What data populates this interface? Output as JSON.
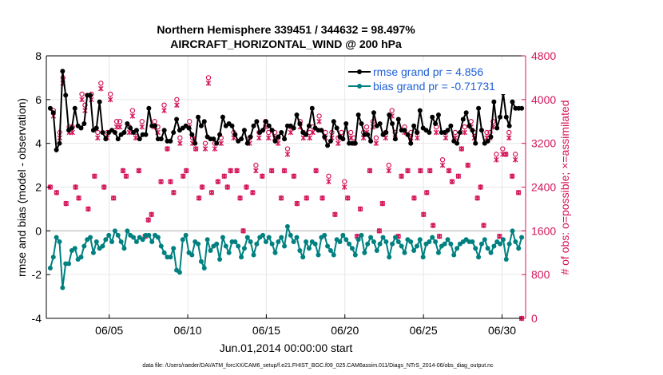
{
  "chart_data": {
    "type": "line",
    "title_line1": "Northern Hemisphere 339451 / 344632 = 98.497%",
    "title_line2": "AIRCRAFT_HORIZONTAL_WIND @ 200 hPa",
    "xlabel": "Jun.01,2014 00:00:00 start",
    "ylabel_left": "rmse and bias (model - observation)",
    "ylabel_right": "# of obs: o=possible; ×=assimilated",
    "footnote": "data file: /Users/raeder/DAI/ATM_forcXX/CAM6_setup/f.e21.FHIST_BGC.f09_025.CAM6assim.011/Diags_NTrS_2014-06/obs_diag_output.nc",
    "xlim": [
      1,
      31.5
    ],
    "ylim_left": [
      -4,
      8
    ],
    "ylim_right": [
      0,
      4800
    ],
    "x_ticks": [
      {
        "value": 5,
        "label": "06/05"
      },
      {
        "value": 10,
        "label": "06/10"
      },
      {
        "value": 15,
        "label": "06/15"
      },
      {
        "value": 20,
        "label": "06/20"
      },
      {
        "value": 25,
        "label": "06/25"
      },
      {
        "value": 30,
        "label": "06/30"
      }
    ],
    "y_ticks_left": [
      -4,
      -2,
      0,
      2,
      4,
      6,
      8
    ],
    "y_ticks_right": [
      0,
      800,
      1600,
      2400,
      3200,
      4000,
      4800
    ],
    "legend": [
      {
        "label": "rmse grand pr = 4.856",
        "color": "#000000"
      },
      {
        "label": "bias grand pr = -0.71731",
        "color": "#008080"
      }
    ],
    "colors": {
      "rmse": "#000000",
      "bias": "#008080",
      "obs": "#d4145a",
      "zero_line": "#c8c8c8"
    },
    "series": [
      {
        "name": "rmse",
        "axis": "left",
        "values": [
          5.6,
          5.4,
          3.7,
          4.0,
          7.3,
          6.2,
          4.6,
          4.7,
          5.6,
          4.8,
          4.7,
          4.9,
          6.2,
          6.2,
          4.6,
          4.7,
          5.9,
          4.5,
          4.2,
          4.5,
          4.6,
          4.5,
          4.2,
          4.4,
          4.5,
          4.9,
          4.7,
          4.5,
          4.6,
          4.2,
          4.4,
          4.4,
          5.6,
          4.8,
          4.8,
          4.2,
          4.2,
          4.6,
          4.1,
          4.1,
          4.5,
          5.1,
          4.6,
          4.7,
          4.8,
          4.7,
          4.4,
          4.0,
          5.2,
          4.8,
          5.0,
          4.3,
          4.2,
          4.2,
          4.0,
          4.4,
          5.2,
          4.8,
          4.9,
          4.8,
          4.4,
          4.1,
          4.2,
          4.6,
          4.0,
          4.3,
          4.8,
          5.0,
          4.5,
          4.6,
          5.0,
          4.8,
          4.6,
          4.1,
          4.3,
          4.5,
          4.2,
          4.8,
          4.8,
          4.7,
          5.3,
          4.9,
          4.5,
          4.4,
          4.8,
          5.6,
          4.7,
          4.6,
          4.6,
          4.3,
          3.9,
          4.1,
          5.0,
          4.7,
          4.3,
          4.2,
          4.9,
          4.0,
          4.0,
          4.0,
          5.3,
          4.9,
          4.4,
          4.4,
          4.1,
          5.4,
          4.8,
          4.9,
          4.4,
          4.5,
          5.3,
          4.9,
          4.2,
          5.1,
          4.6,
          4.6,
          4.4,
          4.0,
          4.8,
          4.5,
          5.5,
          4.7,
          4.6,
          4.5,
          5.2,
          4.9,
          5.3,
          4.5,
          4.5,
          4.6,
          4.8,
          4.1,
          4.0,
          4.5,
          5.1,
          5.4,
          4.8,
          4.6,
          4.0,
          5.6,
          4.6,
          4.0,
          4.1,
          4.3,
          5.9,
          4.7,
          5.2,
          6.3,
          5.2,
          4.8,
          5.9,
          5.6,
          5.6,
          5.6
        ]
      },
      {
        "name": "bias",
        "axis": "left",
        "values": [
          -1.7,
          -1.2,
          -0.3,
          -0.5,
          -2.6,
          -1.5,
          -1.5,
          -0.9,
          -0.8,
          -1.3,
          -1.2,
          -0.7,
          -0.4,
          -0.3,
          -1.0,
          -0.5,
          -0.8,
          -0.7,
          -0.4,
          -0.2,
          -0.5,
          0.0,
          -0.2,
          -0.5,
          -0.8,
          0.0,
          -0.2,
          -0.3,
          -0.5,
          -0.3,
          -0.4,
          -0.2,
          -0.2,
          -0.5,
          -0.2,
          -0.3,
          -0.7,
          -1.0,
          -1.2,
          -1.2,
          -0.8,
          -1.8,
          -1.9,
          -0.4,
          -0.2,
          -1.0,
          -1.1,
          -0.5,
          -0.6,
          -1.4,
          -1.7,
          -0.4,
          -0.9,
          -0.7,
          -0.6,
          -1.3,
          -0.3,
          -0.7,
          -1.0,
          -0.5,
          -0.5,
          -0.7,
          -1.2,
          -0.8,
          -0.3,
          -0.5,
          -1.1,
          -0.6,
          -0.3,
          -0.2,
          -0.5,
          -0.3,
          -0.6,
          -1.0,
          -0.5,
          -0.3,
          -0.7,
          0.2,
          -0.2,
          -0.5,
          -0.3,
          -0.9,
          -1.2,
          -0.5,
          -0.8,
          -0.5,
          -0.6,
          -1.1,
          -0.3,
          -0.2,
          -0.7,
          -0.9,
          -1.1,
          -0.4,
          -0.5,
          -0.2,
          -0.4,
          -0.6,
          -0.8,
          -1.1,
          -0.4,
          -0.2,
          -1.0,
          -0.6,
          -0.3,
          -0.5,
          -0.9,
          -0.6,
          -0.3,
          -0.5,
          -1.2,
          -0.6,
          -0.3,
          -0.5,
          -0.7,
          -1.0,
          -0.4,
          -0.5,
          -0.9,
          -0.7,
          -0.4,
          -1.2,
          -0.6,
          -0.5,
          -0.3,
          -0.5,
          -1.0,
          -0.7,
          -0.6,
          -0.4,
          -0.6,
          -1.1,
          -0.8,
          -0.6,
          -0.5,
          -0.4,
          -0.5,
          -0.5,
          -0.8,
          -1.2,
          -0.6,
          -0.4,
          -0.8,
          -1.0,
          -0.7,
          -0.5,
          -0.6,
          -0.4,
          -1.3,
          -0.6,
          0.0,
          -0.5,
          -0.8,
          -0.3
        ]
      },
      {
        "name": "obs_assimilated",
        "axis": "right",
        "values": [
          2400,
          3700,
          2300,
          3300,
          4300,
          2100,
          3400,
          3400,
          2400,
          2200,
          4000,
          3800,
          2000,
          4000,
          2600,
          3300,
          4200,
          2400,
          3300,
          4000,
          2200,
          3500,
          3500,
          2700,
          2600,
          3400,
          3700,
          3300,
          2700,
          3500,
          1500,
          1800,
          1900,
          3500,
          3400,
          2500,
          3800,
          3100,
          2500,
          2300,
          3900,
          3200,
          2600,
          2700,
          3500,
          3200,
          3100,
          2200,
          2400,
          3100,
          4300,
          2300,
          3100,
          2500,
          3200,
          2600,
          2400,
          2700,
          3300,
          2700,
          2200,
          1600,
          2400,
          3200,
          2300,
          2700,
          3300,
          2600,
          3500,
          3300,
          2700,
          3300,
          3200,
          2200,
          2700,
          3000,
          3400,
          2600,
          2100,
          3500,
          3300,
          2200,
          3300,
          3400,
          2700,
          3600,
          2200,
          3300,
          2500,
          3300,
          1900,
          3200,
          3300,
          2400,
          2200,
          3300,
          3200,
          1500,
          2000,
          3300,
          3400,
          2700,
          3500,
          3200,
          1600,
          2100,
          3300,
          2700,
          3700,
          3300,
          1500,
          2600,
          3400,
          2700,
          3300,
          2200,
          3300,
          2700,
          1900,
          2300,
          2700,
          1700,
          3400,
          1500,
          2800,
          3300,
          2700,
          2500,
          3300,
          2600,
          3100,
          3400,
          2800,
          3500,
          3300,
          2200,
          2400,
          1700,
          3300,
          3300,
          3500,
          2900,
          1500,
          3000,
          3000,
          3300,
          2600,
          2900,
          2300,
          0
        ]
      },
      {
        "name": "obs_possible",
        "axis": "right",
        "values": [
          2400,
          3800,
          2300,
          3400,
          4400,
          2100,
          3500,
          3500,
          2400,
          2200,
          4100,
          3900,
          2000,
          4100,
          2600,
          3400,
          4300,
          2400,
          3400,
          4100,
          2200,
          3600,
          3600,
          2700,
          2600,
          3500,
          3800,
          3400,
          2700,
          3600,
          1500,
          1800,
          1900,
          3600,
          3500,
          2500,
          3900,
          3100,
          2500,
          2300,
          4000,
          3300,
          2600,
          2700,
          3600,
          3300,
          3100,
          2200,
          2400,
          3200,
          4400,
          2300,
          3200,
          2500,
          3300,
          2600,
          2400,
          2700,
          3400,
          2700,
          2200,
          1600,
          2400,
          3300,
          2300,
          2800,
          3400,
          2600,
          3600,
          3400,
          2700,
          3400,
          3300,
          2200,
          2700,
          3100,
          3500,
          2600,
          2100,
          3600,
          3400,
          2200,
          3400,
          3500,
          2700,
          3700,
          2200,
          3400,
          2600,
          3400,
          1900,
          3300,
          3400,
          2500,
          2200,
          3400,
          3300,
          1500,
          2000,
          3400,
          3500,
          2700,
          3600,
          3300,
          1600,
          2100,
          3400,
          2800,
          3800,
          3400,
          1500,
          2600,
          3500,
          2700,
          3400,
          2200,
          3400,
          2700,
          1900,
          2300,
          2700,
          1700,
          3500,
          1500,
          2900,
          3400,
          2700,
          2500,
          3400,
          2600,
          3100,
          3500,
          2800,
          3600,
          3400,
          2200,
          2400,
          1700,
          3400,
          3400,
          3600,
          3000,
          1500,
          3100,
          3000,
          3400,
          2600,
          3000,
          2300,
          0
        ]
      }
    ]
  }
}
